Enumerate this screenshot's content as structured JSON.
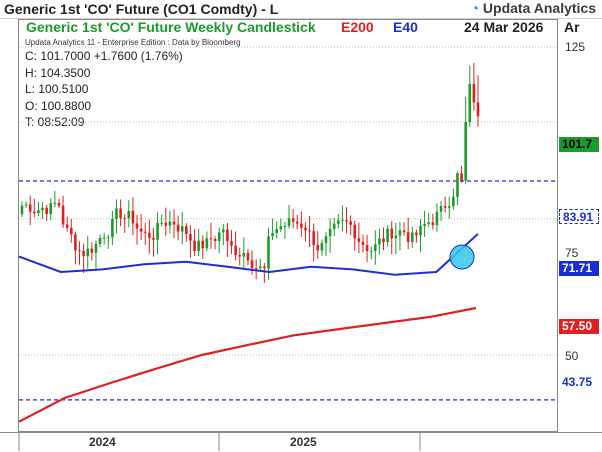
{
  "window": {
    "title": "Generic 1st 'CO' Future (CO1 Comdty) - L",
    "brand": "Updata Analytics"
  },
  "chart_header": {
    "title": "Generic 1st 'CO' Future Weekly Candlestick",
    "legend_e200": "E200",
    "legend_e40": "E40",
    "date": "24 Mar 2026",
    "axis_unit": "Ar"
  },
  "info_line": "Updata Analytics 11 - Enterprise Edition : Data by Bloomberg",
  "ohlc": {
    "close": "C: 101.7000  +1.7600 (1.76%)",
    "high": "H: 104.3500",
    "low": "L: 100.5100",
    "open": "O: 100.8800",
    "time": "T: 08:52:09"
  },
  "colors": {
    "up_candle": "#1a9b2a",
    "down_candle": "#e02020",
    "e200": "#e02020",
    "e40": "#1a2fd1",
    "dashed_level": "#1a2fd1",
    "highlight_circle": "#33c8e8",
    "last_price_box": "#1a9b2a"
  },
  "chart_data": {
    "type": "candlestick",
    "title": "Generic 1st 'CO' Future Weekly Candlestick",
    "y_ticks": [
      "125",
      "75",
      "50"
    ],
    "x_labels": [
      "2024",
      "2025"
    ],
    "price_labels": [
      {
        "text": "101.7",
        "kind": "last"
      },
      {
        "text": "83.91",
        "kind": "level"
      },
      {
        "text": "71.71",
        "kind": "e40"
      },
      {
        "text": "57.50",
        "kind": "e200"
      },
      {
        "text": "43.75",
        "kind": "level"
      }
    ],
    "horizontal_levels": [
      83.91,
      43.75
    ],
    "series": [
      {
        "name": "E200",
        "values": [
          41,
          44,
          46,
          48,
          50,
          51.5,
          53,
          54,
          55,
          56,
          57.5
        ]
      },
      {
        "name": "E40",
        "values": [
          67,
          64,
          64.5,
          65.5,
          66,
          65,
          64,
          65,
          64.5,
          63.5,
          64,
          71.71
        ]
      }
    ],
    "candles_note": "weekly candles approx. 65-80 range 2024-2025, spike to 104 in 2026"
  }
}
